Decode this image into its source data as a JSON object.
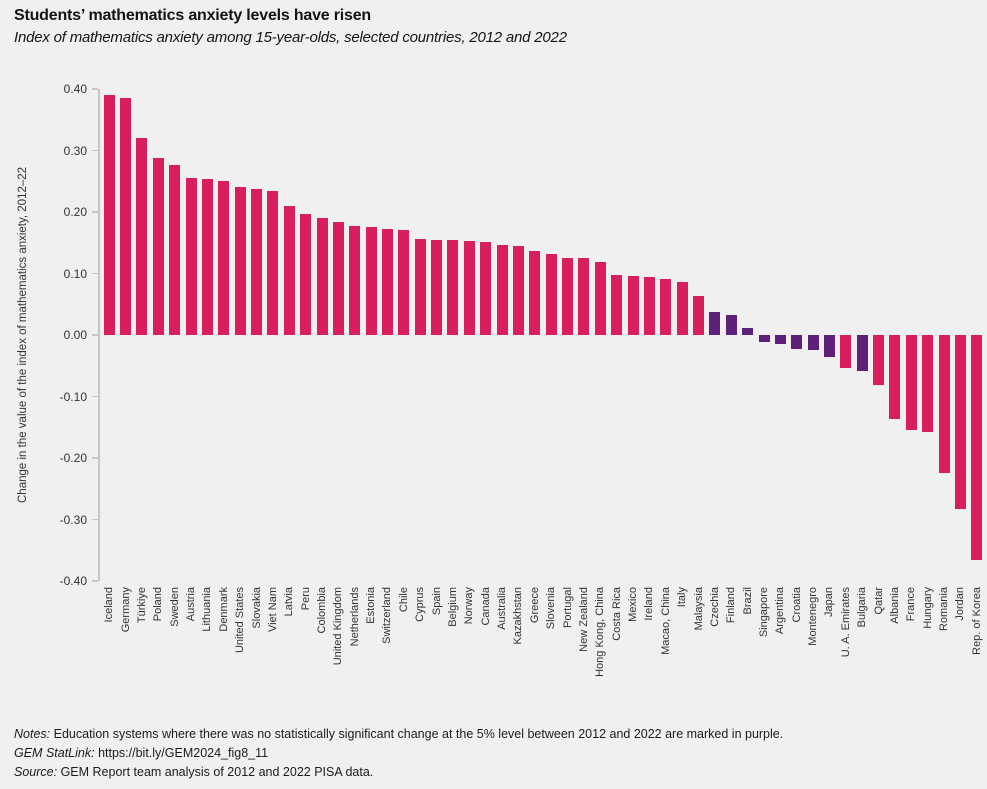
{
  "title": "Students’ mathematics anxiety levels have risen",
  "subtitle": "Index of mathematics anxiety among 15-year-olds, selected countries, 2012 and 2022",
  "colors": {
    "background": "#f0f0f0",
    "significant_change_bar": "#d81e5f",
    "no_significant_change_bar": "#5e2079",
    "axis": "#c6c6c6",
    "text": "#333333"
  },
  "chart_data": {
    "type": "bar",
    "title": "Students’ mathematics anxiety levels have risen",
    "subtitle": "Index of mathematics anxiety among 15-year-olds, selected countries, 2012 and 2022",
    "xlabel": "",
    "ylabel": "Change in the value of the index of mathematics anxiety, 2012–22",
    "ylim": [
      -0.4,
      0.4
    ],
    "yticks": [
      0.4,
      0.3,
      0.2,
      0.1,
      0.0,
      -0.1,
      -0.2,
      -0.3,
      -0.4
    ],
    "grid": false,
    "legend": "none",
    "categories": [
      "Iceland",
      "Germany",
      "Türkiye",
      "Poland",
      "Sweden",
      "Austria",
      "Lithuania",
      "Denmark",
      "United States",
      "Slovakia",
      "Viet Nam",
      "Latvia",
      "Peru",
      "Colombia",
      "United Kingdom",
      "Netherlands",
      "Estonia",
      "Switzerland",
      "Chile",
      "Cyprus",
      "Spain",
      "Belgium",
      "Norway",
      "Canada",
      "Australia",
      "Kazakhstan",
      "Greece",
      "Slovenia",
      "Portugal",
      "New Zealand",
      "Hong Kong, China",
      "Costa Rica",
      "Mexico",
      "Ireland",
      "Macao, China",
      "Italy",
      "Malaysia",
      "Czechia",
      "Finland",
      "Brazil",
      "Singapore",
      "Argentina",
      "Croatia",
      "Montenegro",
      "Japan",
      "U. A. Emirates",
      "Bulgaria",
      "Qatar",
      "Albania",
      "France",
      "Hungary",
      "Romania",
      "Jordan",
      "Rep. of Korea"
    ],
    "values": [
      0.39,
      0.385,
      0.32,
      0.287,
      0.276,
      0.256,
      0.254,
      0.251,
      0.24,
      0.237,
      0.234,
      0.21,
      0.196,
      0.19,
      0.184,
      0.178,
      0.175,
      0.172,
      0.17,
      0.156,
      0.155,
      0.154,
      0.153,
      0.151,
      0.147,
      0.145,
      0.136,
      0.131,
      0.126,
      0.125,
      0.118,
      0.097,
      0.096,
      0.095,
      0.091,
      0.086,
      0.064,
      0.038,
      0.033,
      0.012,
      -0.011,
      -0.014,
      -0.022,
      -0.024,
      -0.035,
      -0.054,
      -0.058,
      -0.082,
      -0.136,
      -0.154,
      -0.157,
      -0.225,
      -0.283,
      -0.366
    ],
    "no_significant_change_countries": [
      "Czechia",
      "Finland",
      "Brazil",
      "Singapore",
      "Argentina",
      "Croatia",
      "Montenegro",
      "Japan",
      "Bulgaria"
    ]
  },
  "notes": {
    "notes_label": "Notes:",
    "notes_text": "Education systems where there was no statistically significant change at the 5% level between 2012 and 2022 are marked in purple.",
    "statlink_label": "GEM StatLink:",
    "statlink_url": "https://bit.ly/GEM2024_fig8_11",
    "source_label": "Source:",
    "source_text": "GEM Report team analysis of 2012 and 2022 PISA data."
  }
}
